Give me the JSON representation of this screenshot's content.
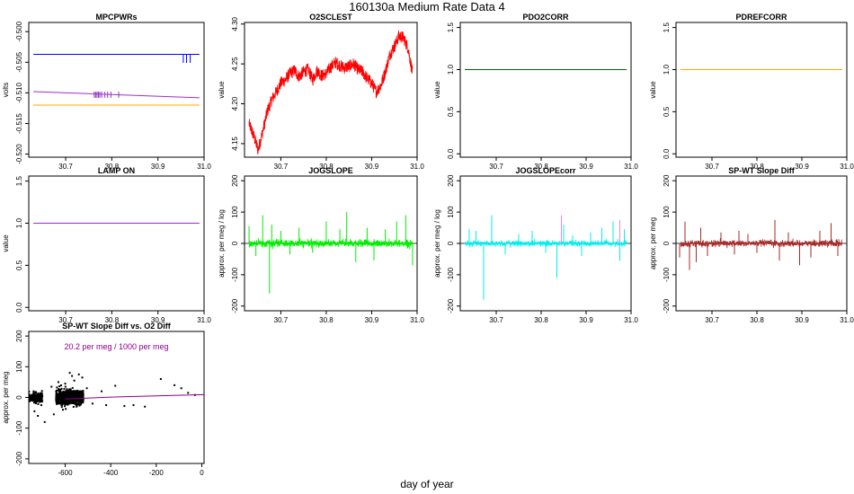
{
  "page": {
    "title": "160130a   Medium Rate Data 4",
    "xlabel": "day of year"
  },
  "chart_data": [
    {
      "id": "mpcpwrs",
      "type": "line",
      "title": "MPCPWRs",
      "ylabel": "volts",
      "xlim": [
        30.62,
        31.0
      ],
      "ylim": [
        -0.5205,
        -0.4985
      ],
      "xticks": [
        "30.7",
        "30.8",
        "30.9",
        "31.0"
      ],
      "xtick_values": [
        30.7,
        30.8,
        30.9,
        31.0
      ],
      "yticks": [
        "-0.520",
        "-0.515",
        "-0.510",
        "-0.505",
        "-0.500"
      ],
      "ytick_values": [
        -0.52,
        -0.515,
        -0.51,
        -0.505,
        -0.5
      ],
      "series": [
        {
          "color": "#0000ff",
          "x": [
            30.63,
            30.99
          ],
          "y": [
            -0.5037,
            -0.5037
          ],
          "spikes_x": [
            30.955,
            30.962,
            30.97
          ],
          "spike_to": -0.5051
        },
        {
          "color": "#9b30c8",
          "x": [
            30.63,
            30.99
          ],
          "y": [
            -0.5098,
            -0.5108
          ],
          "spikes_x": [
            30.762,
            30.765,
            30.768,
            30.771,
            30.774,
            30.778,
            30.785,
            30.791,
            30.798,
            30.815
          ],
          "spike_to": -0.5108
        },
        {
          "color": "#ffa500",
          "x": [
            30.63,
            30.99
          ],
          "y": [
            -0.512,
            -0.512
          ]
        }
      ]
    },
    {
      "id": "o2sclest",
      "type": "line",
      "title": "O2SCLEST",
      "ylabel": "value",
      "xlim": [
        30.62,
        31.0
      ],
      "ylim": [
        4.133,
        4.302
      ],
      "xticks": [
        "30.7",
        "30.8",
        "30.9",
        "31.0"
      ],
      "xtick_values": [
        30.7,
        30.8,
        30.9,
        31.0
      ],
      "yticks": [
        "4.15",
        "4.20",
        "4.25",
        "4.30"
      ],
      "ytick_values": [
        4.15,
        4.2,
        4.25,
        4.3
      ],
      "noise": 0.008,
      "series": [
        {
          "color": "#ff0000",
          "x": [
            30.63,
            30.64,
            30.65,
            30.66,
            30.67,
            30.68,
            30.69,
            30.7,
            30.71,
            30.72,
            30.73,
            30.74,
            30.75,
            30.76,
            30.77,
            30.78,
            30.79,
            30.8,
            30.81,
            30.82,
            30.83,
            30.84,
            30.85,
            30.86,
            30.87,
            30.88,
            30.89,
            30.9,
            30.91,
            30.92,
            30.93,
            30.94,
            30.95,
            30.96,
            30.97,
            30.98,
            30.99
          ],
          "y": [
            4.175,
            4.16,
            4.142,
            4.165,
            4.19,
            4.205,
            4.215,
            4.226,
            4.23,
            4.238,
            4.242,
            4.234,
            4.24,
            4.243,
            4.23,
            4.242,
            4.235,
            4.238,
            4.246,
            4.252,
            4.248,
            4.245,
            4.247,
            4.25,
            4.243,
            4.24,
            4.232,
            4.226,
            4.215,
            4.223,
            4.24,
            4.262,
            4.272,
            4.285,
            4.283,
            4.27,
            4.238
          ]
        }
      ]
    },
    {
      "id": "pdo2corr",
      "type": "line",
      "title": "PDO2CORR",
      "ylabel": "value",
      "xlim": [
        30.62,
        31.0
      ],
      "ylim": [
        -0.04,
        1.56
      ],
      "xticks": [
        "30.7",
        "30.8",
        "30.9",
        "31.0"
      ],
      "xtick_values": [
        30.7,
        30.8,
        30.9,
        31.0
      ],
      "yticks": [
        "0.0",
        "0.5",
        "1.0",
        "1.5"
      ],
      "ytick_values": [
        0.0,
        0.5,
        1.0,
        1.5
      ],
      "series": [
        {
          "color": "#006400",
          "x": [
            30.63,
            30.99
          ],
          "y": [
            1.0,
            1.0
          ]
        }
      ]
    },
    {
      "id": "pdrefcorr",
      "type": "line",
      "title": "PDREFCORR",
      "ylabel": "value",
      "xlim": [
        30.62,
        31.0
      ],
      "ylim": [
        -0.04,
        1.56
      ],
      "xticks": [
        "30.7",
        "30.8",
        "30.9",
        "31.0"
      ],
      "xtick_values": [
        30.7,
        30.8,
        30.9,
        31.0
      ],
      "yticks": [
        "0.0",
        "0.5",
        "1.0",
        "1.5"
      ],
      "ytick_values": [
        0.0,
        0.5,
        1.0,
        1.5
      ],
      "series": [
        {
          "color": "#ffa500",
          "x": [
            30.63,
            30.99
          ],
          "y": [
            1.0,
            1.0
          ]
        }
      ]
    },
    {
      "id": "lampon",
      "type": "line",
      "title": "LAMP ON",
      "ylabel": "value",
      "xlim": [
        30.62,
        31.0
      ],
      "ylim": [
        -0.04,
        1.56
      ],
      "xticks": [
        "30.7",
        "30.8",
        "30.9",
        "31.0"
      ],
      "xtick_values": [
        30.7,
        30.8,
        30.9,
        31.0
      ],
      "yticks": [
        "0.0",
        "0.5",
        "1.0",
        "1.5"
      ],
      "ytick_values": [
        0.0,
        0.5,
        1.0,
        1.5
      ],
      "series": [
        {
          "color": "#a020f0",
          "x": [
            30.63,
            30.99
          ],
          "y": [
            1.0,
            1.0
          ]
        }
      ]
    },
    {
      "id": "jogslope",
      "type": "line",
      "title": "JOGSLOPE",
      "ylabel": "approx. per meg / log",
      "xlim": [
        30.62,
        31.0
      ],
      "ylim": [
        -215,
        215
      ],
      "xticks": [
        "30.7",
        "30.8",
        "30.9",
        "31.0"
      ],
      "xtick_values": [
        30.7,
        30.8,
        30.9,
        31.0
      ],
      "yticks": [
        "-200",
        "-100",
        "0",
        "100",
        "200"
      ],
      "ytick_values": [
        -200,
        -100,
        0,
        100,
        200
      ],
      "hline": 0,
      "noise": 10,
      "series": [
        {
          "color": "#00ee00",
          "spikes_x": [
            30.63,
            30.645,
            30.66,
            30.675,
            30.68,
            30.7,
            30.72,
            30.74,
            30.77,
            30.8,
            30.83,
            30.845,
            30.865,
            30.89,
            30.905,
            30.93,
            30.955,
            30.975,
            30.99
          ],
          "spikes_y": [
            55,
            -40,
            90,
            -160,
            60,
            40,
            -35,
            50,
            -30,
            70,
            45,
            100,
            -60,
            50,
            -55,
            45,
            70,
            90,
            -70
          ]
        }
      ]
    },
    {
      "id": "jogslopecorr",
      "type": "line",
      "title": "JOGSLOPEcorr",
      "ylabel": "approx. per meg / log",
      "xlim": [
        30.62,
        31.0
      ],
      "ylim": [
        -215,
        215
      ],
      "xticks": [
        "30.7",
        "30.8",
        "30.9",
        "31.0"
      ],
      "xtick_values": [
        30.7,
        30.8,
        30.9,
        31.0
      ],
      "yticks": [
        "-200",
        "-100",
        "0",
        "100",
        "200"
      ],
      "ytick_values": [
        -200,
        -100,
        0,
        100,
        200
      ],
      "hline": 0,
      "noise": 8,
      "series": [
        {
          "color": "#00eeee",
          "spikes_x": [
            30.64,
            30.655,
            30.672,
            30.69,
            30.72,
            30.75,
            30.78,
            30.81,
            30.835,
            30.85,
            30.87,
            30.89,
            30.91,
            30.935,
            30.96,
            30.975,
            30.985
          ],
          "spikes_y": [
            45,
            40,
            -180,
            90,
            -35,
            30,
            40,
            -30,
            -110,
            60,
            25,
            -40,
            35,
            50,
            70,
            -55,
            45
          ]
        },
        {
          "color": "#ee82ee",
          "spikes_x": [
            30.845,
            30.975
          ],
          "spikes_y": [
            90,
            75
          ]
        }
      ]
    },
    {
      "id": "spwtslopediff",
      "type": "line",
      "title": "SP-WT Slope Diff",
      "ylabel": "approx. per meg",
      "xlim": [
        30.62,
        31.0
      ],
      "ylim": [
        -215,
        215
      ],
      "xticks": [
        "30.7",
        "30.8",
        "30.9",
        "31.0"
      ],
      "xtick_values": [
        30.7,
        30.8,
        30.9,
        31.0
      ],
      "yticks": [
        "-200",
        "-100",
        "0",
        "100",
        "200"
      ],
      "ytick_values": [
        -200,
        -100,
        0,
        100,
        200
      ],
      "hline": 0,
      "noise": 9,
      "series": [
        {
          "color": "#a52a2a",
          "spikes_x": [
            30.628,
            30.64,
            30.65,
            30.665,
            30.675,
            30.69,
            30.72,
            30.75,
            30.76,
            30.78,
            30.8,
            30.84,
            30.85,
            30.87,
            30.895,
            30.92,
            30.94,
            30.965,
            30.98
          ],
          "spikes_y": [
            -45,
            70,
            -85,
            -60,
            50,
            -40,
            35,
            -35,
            40,
            30,
            -30,
            75,
            -55,
            35,
            -70,
            -45,
            40,
            65,
            -40
          ]
        }
      ]
    },
    {
      "id": "spwt_vs_o2",
      "type": "scatter",
      "title": "SP-WT Slope Diff vs. O2 Diff",
      "ylabel": "approx. per meg",
      "annotation": "20.2 per meg / 1000 per meg",
      "annotation_color": "#8b008b",
      "xlim": [
        -760,
        10
      ],
      "ylim": [
        -215,
        215
      ],
      "xticks": [
        "-600",
        "-400",
        "-200",
        "0"
      ],
      "xtick_values": [
        -600,
        -400,
        -200,
        0
      ],
      "yticks": [
        "-200",
        "-100",
        "0",
        "100",
        "200"
      ],
      "ytick_values": [
        -200,
        -100,
        0,
        100,
        200
      ],
      "point_color": "#000000",
      "clusters": [
        {
          "x_range": [
            -760,
            -700
          ],
          "y_sd": 8,
          "count": 220
        },
        {
          "x_range": [
            -640,
            -520
          ],
          "y_sd": 11,
          "count": 900
        }
      ],
      "points": [
        {
          "x": -735,
          "y": -45
        },
        {
          "x": -720,
          "y": -60
        },
        {
          "x": -705,
          "y": -25
        },
        {
          "x": -690,
          "y": -80
        },
        {
          "x": -660,
          "y": 35
        },
        {
          "x": -650,
          "y": -55
        },
        {
          "x": -630,
          "y": 50
        },
        {
          "x": -610,
          "y": -40
        },
        {
          "x": -600,
          "y": 45
        },
        {
          "x": -580,
          "y": 80
        },
        {
          "x": -570,
          "y": 70
        },
        {
          "x": -560,
          "y": 55
        },
        {
          "x": -550,
          "y": -30
        },
        {
          "x": -540,
          "y": 75
        },
        {
          "x": -525,
          "y": 65
        },
        {
          "x": -505,
          "y": 30
        },
        {
          "x": -480,
          "y": -20
        },
        {
          "x": -440,
          "y": 20
        },
        {
          "x": -420,
          "y": -25
        },
        {
          "x": -380,
          "y": 38
        },
        {
          "x": -340,
          "y": -28
        },
        {
          "x": -300,
          "y": -25
        },
        {
          "x": -250,
          "y": -30
        },
        {
          "x": -180,
          "y": 60
        },
        {
          "x": -120,
          "y": 40
        },
        {
          "x": -90,
          "y": 30
        },
        {
          "x": -60,
          "y": 15
        },
        {
          "x": -30,
          "y": 8
        }
      ],
      "fit_line": {
        "color": "#8b008b",
        "x": [
          -600,
          -400,
          -200,
          10
        ],
        "y": [
          -5,
          1,
          5,
          9
        ]
      }
    }
  ]
}
